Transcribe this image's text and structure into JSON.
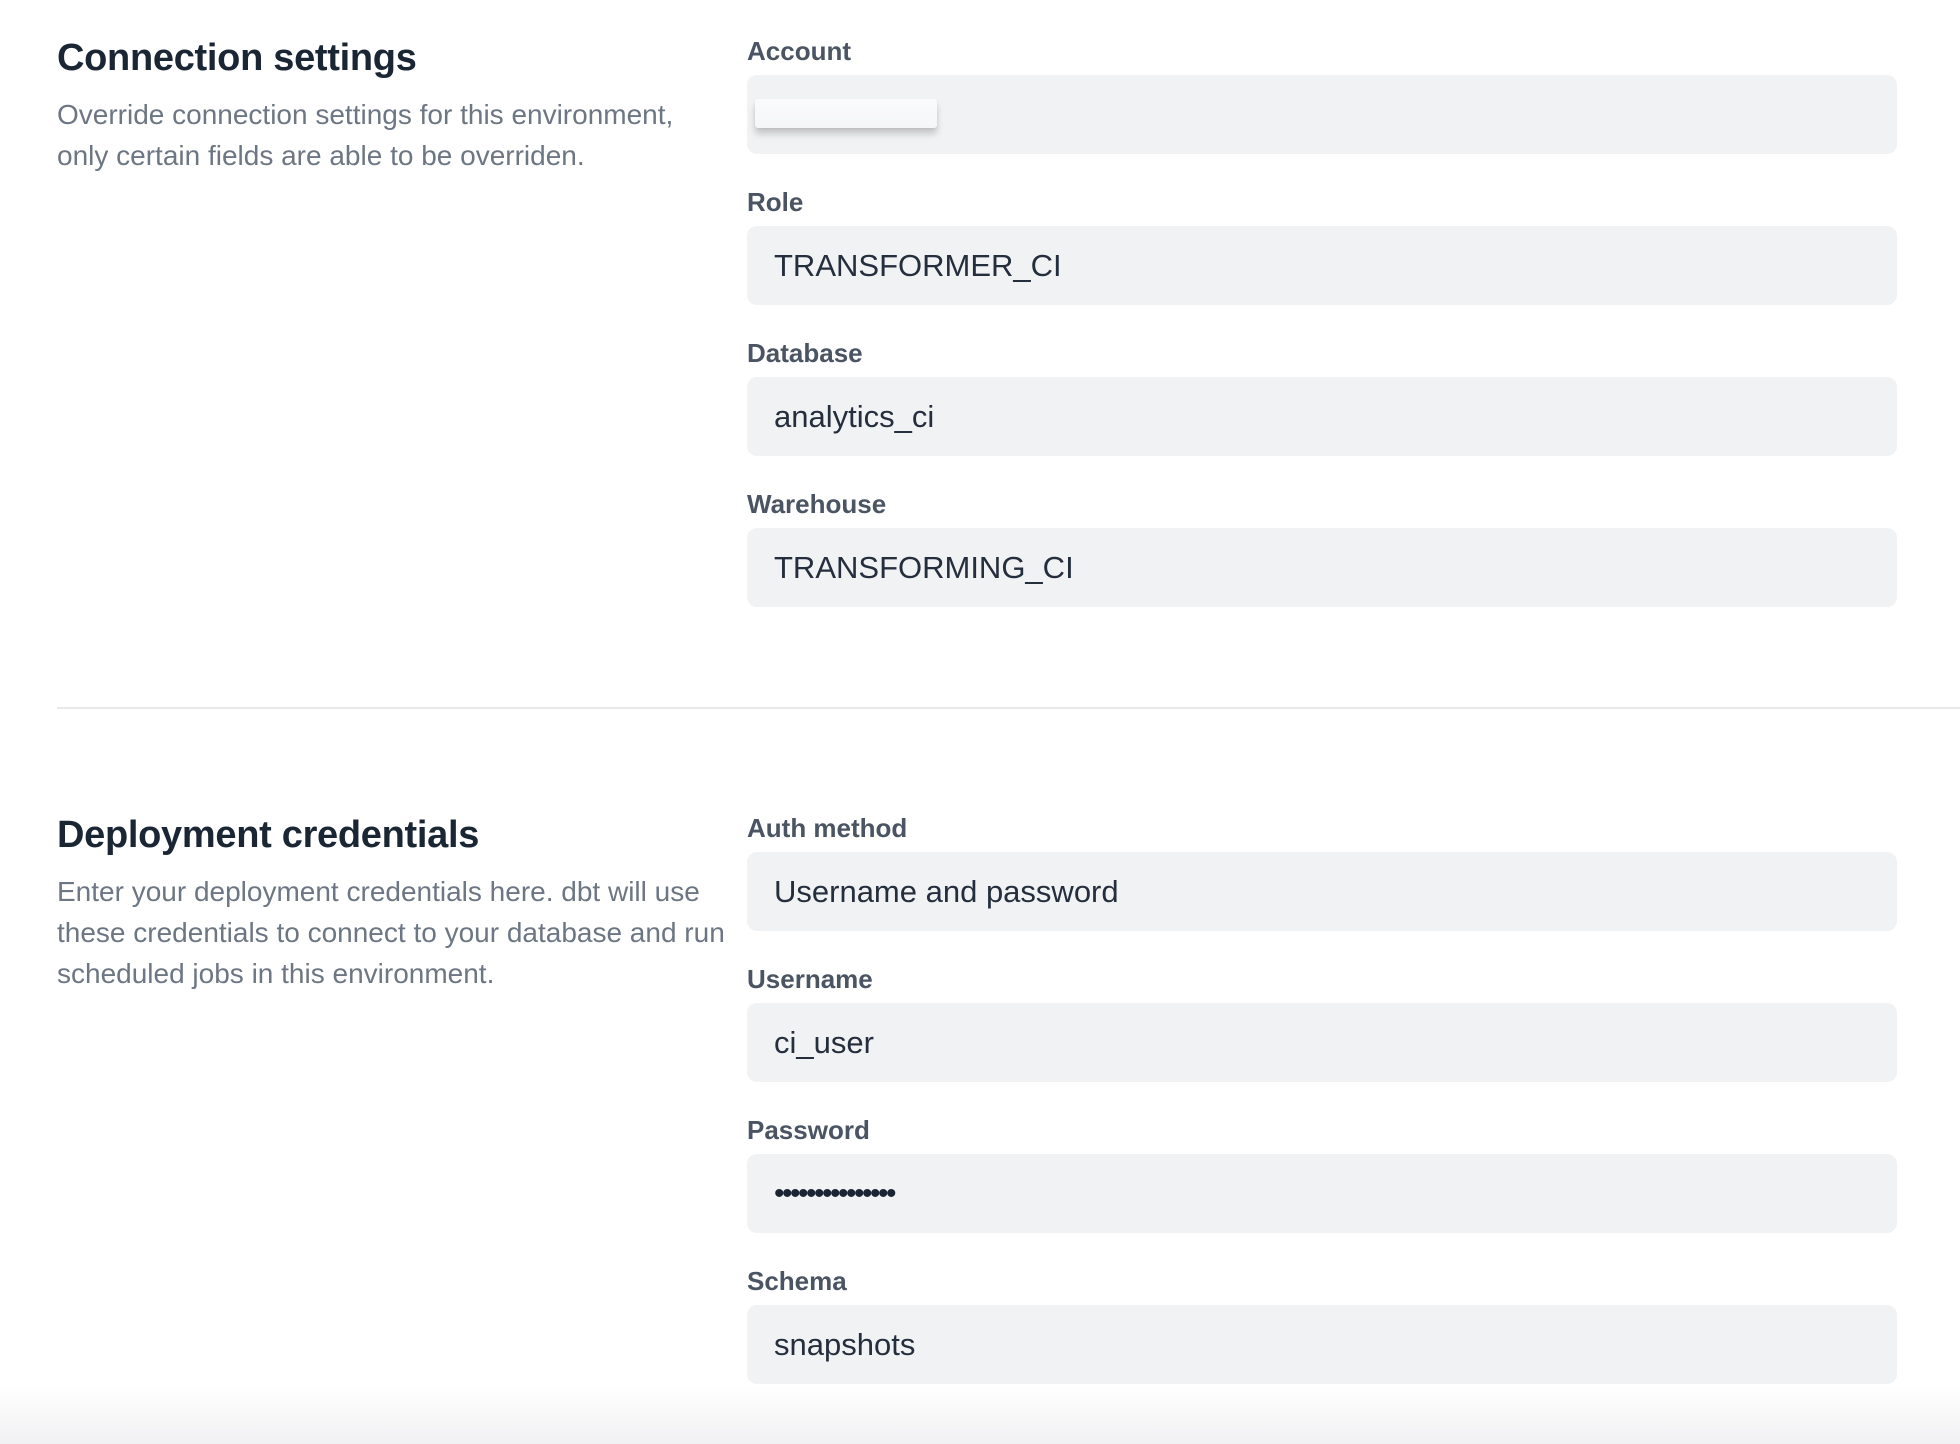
{
  "sections": [
    {
      "title": "Connection settings",
      "description": "Override connection settings for this environment, only certain fields are able to be overriden.",
      "description_lines": [
        "Override connection settings for this environment,",
        "only certain fields are able to be overriden."
      ],
      "fields": [
        {
          "label": "Account",
          "value": "",
          "redacted": true
        },
        {
          "label": "Role",
          "value": "TRANSFORMER_CI"
        },
        {
          "label": "Database",
          "value": "analytics_ci"
        },
        {
          "label": "Warehouse",
          "value": "TRANSFORMING_CI"
        }
      ]
    },
    {
      "title": "Deployment credentials",
      "description": "Enter your deployment credentials here. dbt will use these credentials to connect to your database and run scheduled jobs in this environment.",
      "description_lines": [
        "Enter your deployment credentials here. dbt will use",
        "these credentials to connect to your database and run",
        "scheduled jobs in this environment."
      ],
      "fields": [
        {
          "label": "Auth method",
          "value": "Username and password"
        },
        {
          "label": "Username",
          "value": "ci_user"
        },
        {
          "label": "Password",
          "value": "•••••••••••••••",
          "masked": true
        },
        {
          "label": "Schema",
          "value": "snapshots"
        }
      ]
    }
  ],
  "colors": {
    "heading_text": "#1b2634",
    "label_text": "#4a5462",
    "value_text": "#252e3c",
    "description_text": "#6d7683",
    "field_background": "#f1f2f4",
    "divider": "#e9e9eb"
  }
}
